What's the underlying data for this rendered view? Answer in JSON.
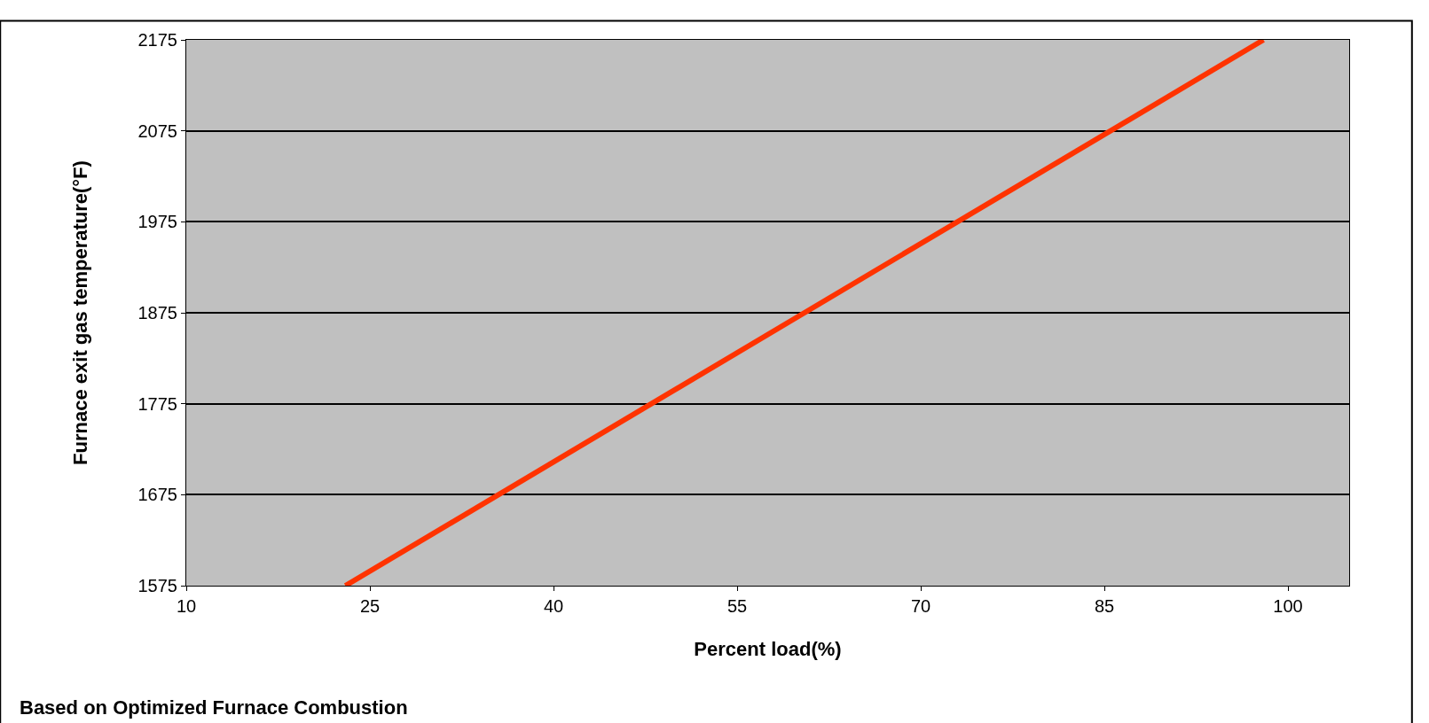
{
  "chart_data": {
    "type": "line",
    "xlabel": "Percent load(%)",
    "ylabel": "Furnace exit gas temperature(°F)",
    "x": [
      23,
      98
    ],
    "series": [
      {
        "color": "#ff3300",
        "values": [
          1575,
          2175
        ]
      }
    ],
    "xlim": [
      10,
      105
    ],
    "xticks": [
      10,
      25,
      40,
      55,
      70,
      85,
      100
    ],
    "ylim": [
      1575,
      2175
    ],
    "yticks": [
      1575,
      1675,
      1775,
      1875,
      1975,
      2075,
      2175
    ],
    "grid": "y",
    "legend": false,
    "marker": "none",
    "line_style": "solid",
    "annotations": [
      "Based on Optimized Furnace Combustion"
    ]
  }
}
